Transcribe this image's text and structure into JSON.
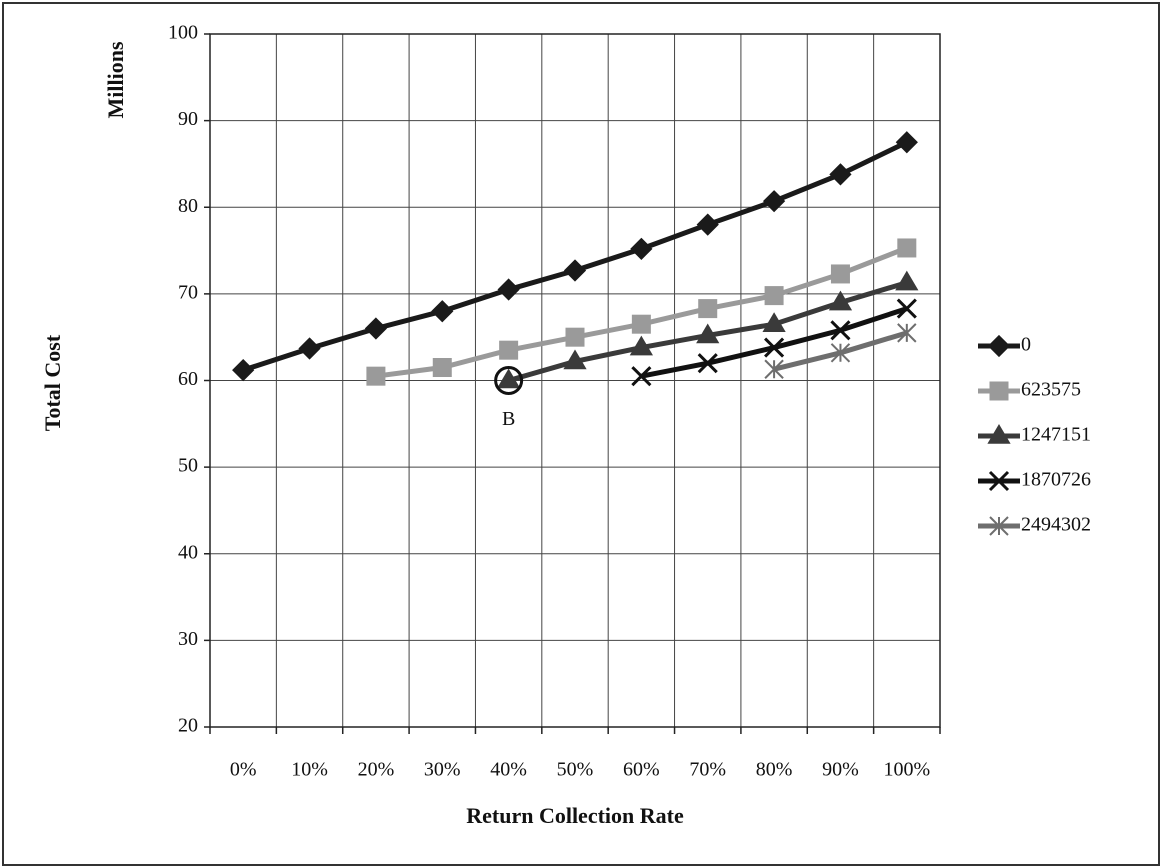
{
  "chart_data": {
    "type": "line",
    "y_label": "Total Cost",
    "y_unit_label": "Millions",
    "x_label": "Return Collection Rate",
    "annotation": "B",
    "categories": [
      "0%",
      "10%",
      "20%",
      "30%",
      "40%",
      "50%",
      "60%",
      "70%",
      "80%",
      "90%",
      "100%"
    ],
    "series": [
      {
        "name": "0",
        "color": "#1a1a1a",
        "marker": "diamond",
        "values": [
          61.2,
          63.7,
          66,
          68,
          70.5,
          72.7,
          75.2,
          78,
          80.7,
          83.8,
          87.5
        ]
      },
      {
        "name": "623575",
        "color": "#9a9a9a",
        "marker": "square",
        "values": [
          null,
          null,
          60.5,
          61.5,
          63.5,
          65,
          66.5,
          68.3,
          69.8,
          72.3,
          75.3
        ]
      },
      {
        "name": "1247151",
        "color": "#3a3a3a",
        "marker": "triangle",
        "values": [
          null,
          null,
          null,
          null,
          60,
          62.2,
          63.8,
          65.2,
          66.5,
          69,
          71.3
        ]
      },
      {
        "name": "1870726",
        "color": "#111111",
        "marker": "x",
        "values": [
          null,
          null,
          null,
          null,
          null,
          null,
          60.5,
          62,
          63.8,
          65.8,
          68.3
        ]
      },
      {
        "name": "2494302",
        "color": "#6e6e6e",
        "marker": "asterisk",
        "values": [
          null,
          null,
          null,
          null,
          null,
          null,
          null,
          null,
          61.3,
          63.2,
          65.5
        ]
      }
    ],
    "ylim": [
      20,
      100
    ],
    "yticks": [
      20,
      30,
      40,
      50,
      60,
      70,
      80,
      90,
      100
    ],
    "grid": true,
    "legend": "right"
  }
}
